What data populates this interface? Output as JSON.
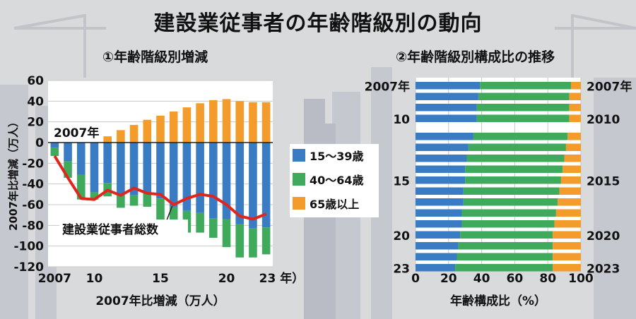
{
  "title": "建設業従事者の年齢階級別の動向",
  "colors": {
    "young": "#3a7cc4",
    "middle": "#3faa5b",
    "senior": "#f39b2b",
    "total_line": "#e0251c",
    "plot_bg": "#ffffff"
  },
  "chart_data": [
    {
      "type": "bar",
      "title": "①年齢階級別増減",
      "xlabel": "2007年比増減（万人）",
      "ylabel": "2007年比増減（万人）",
      "ylim": [
        -120,
        60
      ],
      "yticks": [
        "60",
        "40",
        "20",
        "0",
        "-20",
        "-40",
        "-60",
        "-80",
        "-100",
        "-120"
      ],
      "xtick_labels": [
        "2007",
        "10",
        "15",
        "20",
        "23 年）"
      ],
      "xtick_years": [
        2007,
        2010,
        2015,
        2020,
        2023
      ],
      "year_annotation": "2007年",
      "line_label": "建設業従事者総数",
      "grid": true,
      "legend_position": "right",
      "years": [
        2007,
        2008,
        2009,
        2010,
        2011,
        2012,
        2013,
        2014,
        2015,
        2016,
        2017,
        2018,
        2019,
        2020,
        2021,
        2022,
        2023
      ],
      "series": [
        {
          "name": "15～39歳",
          "values": [
            -5,
            -18,
            -31,
            -48,
            -39,
            -50,
            -51,
            -48,
            -54,
            -62,
            -66,
            -68,
            -73,
            -74,
            -79,
            -83,
            -82
          ]
        },
        {
          "name": "40～64歳",
          "values": [
            -8,
            -16,
            -24,
            -7,
            -13,
            -13,
            -10,
            -14,
            -21,
            -23,
            -21,
            -19,
            -19,
            -27,
            -32,
            -28,
            -26
          ]
        },
        {
          "name": "65歳以上",
          "values": [
            0,
            0,
            0,
            0,
            6,
            12,
            17,
            22,
            26,
            30,
            34,
            38,
            41,
            42,
            40,
            39,
            39
          ]
        }
      ],
      "line_series": {
        "name": "建設業従事者総数",
        "values": [
          -13,
          -34,
          -54,
          -55,
          -46,
          -51,
          -44,
          -49,
          -50,
          -60,
          -54,
          -50,
          -52,
          -60,
          -71,
          -74,
          -69
        ]
      }
    },
    {
      "type": "bar",
      "orientation": "horizontal",
      "stacked": "percent",
      "title": "②年齢階級別構成比の推移",
      "xlabel": "年齢構成比（%）",
      "xlim": [
        0,
        100
      ],
      "xticks": [
        "0",
        "20",
        "40",
        "60",
        "80",
        "100"
      ],
      "left_labels": [
        "2007年",
        "10",
        "15",
        "20",
        "23"
      ],
      "right_labels": [
        "2007年",
        "2010",
        "2015",
        "2020",
        "2023"
      ],
      "years": [
        2007,
        2008,
        2009,
        2010,
        2011,
        2012,
        2013,
        2014,
        2015,
        2016,
        2017,
        2018,
        2019,
        2020,
        2021,
        2022,
        2023
      ],
      "series": [
        {
          "name": "15～39歳",
          "values": [
            39,
            38,
            37,
            37,
            35,
            32,
            31,
            30,
            30,
            29,
            29,
            28,
            28,
            27,
            26,
            25,
            24
          ]
        },
        {
          "name": "40～64歳",
          "values": [
            55,
            55,
            56,
            56,
            57,
            59,
            59,
            59,
            58,
            58,
            57,
            57,
            56,
            56,
            57,
            58,
            59
          ]
        },
        {
          "name": "65歳以上",
          "values": [
            6,
            7,
            7,
            7,
            8,
            9,
            10,
            11,
            12,
            13,
            14,
            15,
            16,
            17,
            17,
            17,
            17
          ]
        }
      ]
    }
  ]
}
